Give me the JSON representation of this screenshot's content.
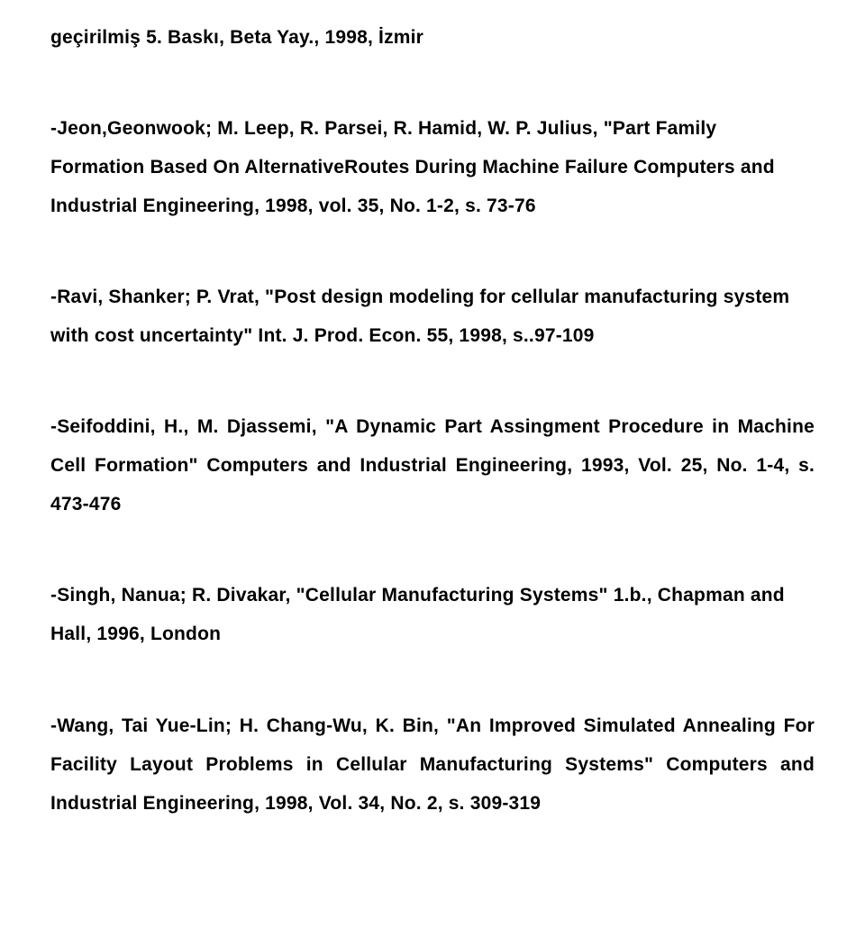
{
  "references": [
    {
      "text": "geçirilmiş 5. Baskı, Beta Yay., 1998, İzmir",
      "justify": false
    },
    {
      "text": "-Jeon,Geonwook; M. Leep, R. Parsei, R. Hamid, W. P. Julius, \"Part Family Formation Based On AlternativeRoutes During Machine Failure Computers and Industrial Engineering, 1998, vol. 35, No. 1-2, s. 73-76",
      "justify": false
    },
    {
      "text": "-Ravi, Shanker; P. Vrat, \"Post design modeling for cellular manufacturing system with cost uncertainty\" Int. J. Prod. Econ. 55, 1998, s..97-109",
      "justify": false
    },
    {
      "text": "-Seifoddini, H., M. Djassemi, \"A Dynamic Part Assingment Procedure in Machine Cell Formation\" Computers and Industrial Engineering, 1993, Vol. 25, No. 1-4, s. 473-476",
      "justify": true
    },
    {
      "text": "-Singh, Nanua; R. Divakar, \"Cellular Manufacturing Systems\" 1.b., Chapman and Hall, 1996, London",
      "justify": false
    },
    {
      "text": "-Wang, Tai Yue-Lin; H. Chang-Wu, K. Bin, \"An Improved Simulated Annealing For Facility Layout Problems in Cellular Manufacturing Systems\" Computers and Industrial Engineering, 1998, Vol. 34, No. 2, s. 309-319",
      "justify": true
    }
  ]
}
